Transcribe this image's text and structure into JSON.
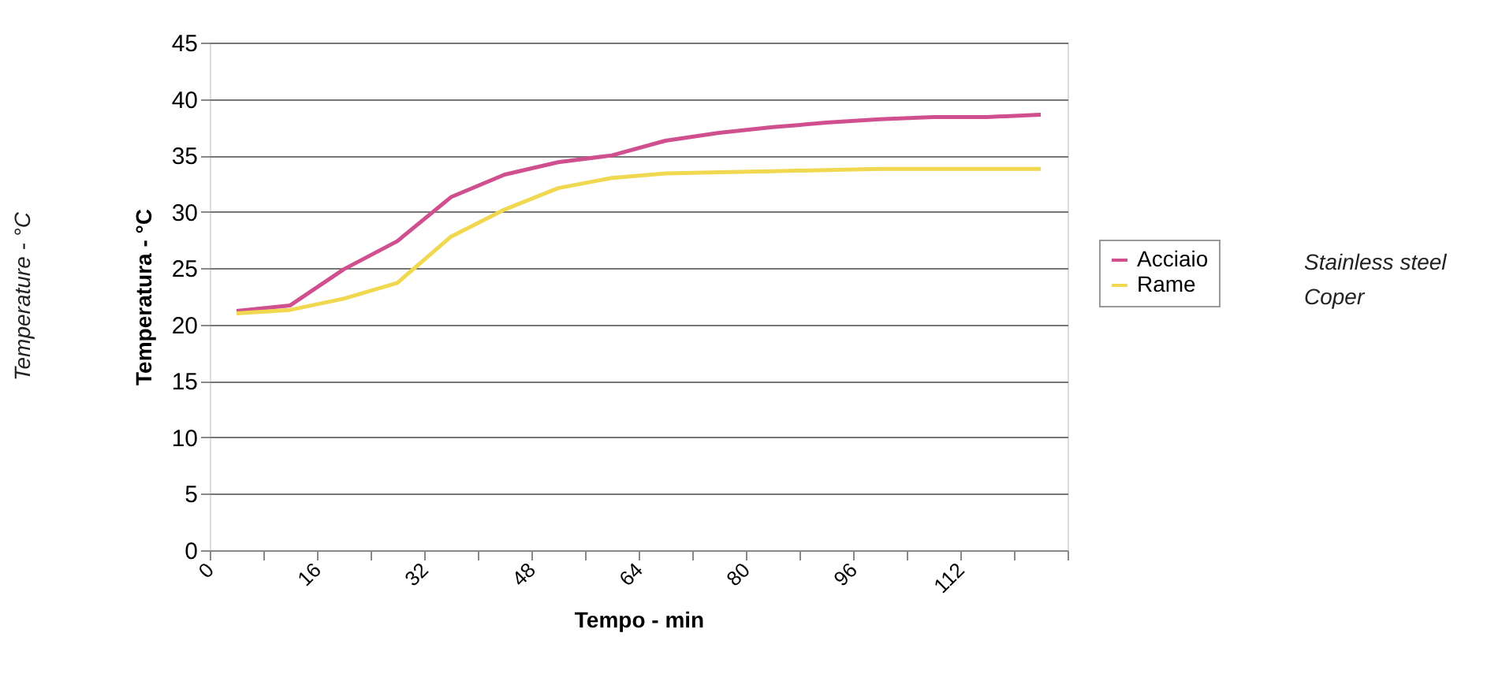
{
  "chart_data": {
    "type": "line",
    "xlabel": "Tempo - min",
    "ylabel": "Temperatura - °C",
    "x": [
      4,
      12,
      20,
      28,
      36,
      44,
      52,
      60,
      68,
      76,
      84,
      92,
      100,
      108,
      116,
      124
    ],
    "series": [
      {
        "name": "Acciaio",
        "color": "#d0508f",
        "values": [
          21.2,
          21.7,
          24.9,
          27.4,
          31.3,
          33.3,
          34.4,
          35.0,
          36.3,
          37.0,
          37.5,
          37.9,
          38.2,
          38.4,
          38.4,
          38.6
        ]
      },
      {
        "name": "Rame",
        "color": "#f0d850",
        "values": [
          21.0,
          21.3,
          22.3,
          23.7,
          27.8,
          30.2,
          32.1,
          33.0,
          33.4,
          33.5,
          33.6,
          33.7,
          33.8,
          33.8,
          33.8,
          33.8
        ]
      }
    ],
    "xlim": [
      0,
      128
    ],
    "xticks": [
      0,
      {
        "value": 8,
        "label": null
      },
      16,
      {
        "value": 24,
        "label": null
      },
      32,
      {
        "value": 40,
        "label": null
      },
      48,
      {
        "value": 56,
        "label": null
      },
      64,
      {
        "value": 72,
        "label": null
      },
      80,
      {
        "value": 88,
        "label": null
      },
      96,
      {
        "value": 104,
        "label": null
      },
      112,
      {
        "value": 120,
        "label": null
      },
      {
        "value": 128,
        "label": null
      }
    ],
    "ylim": [
      0,
      45
    ],
    "yticks": [
      0,
      5,
      10,
      15,
      20,
      25,
      30,
      35,
      40,
      45
    ],
    "grid": "y",
    "legend": "right",
    "marker": "none",
    "line_style": "solid",
    "annotations": [
      "Temperature - °C",
      "Stainless steel",
      "Coper"
    ]
  }
}
